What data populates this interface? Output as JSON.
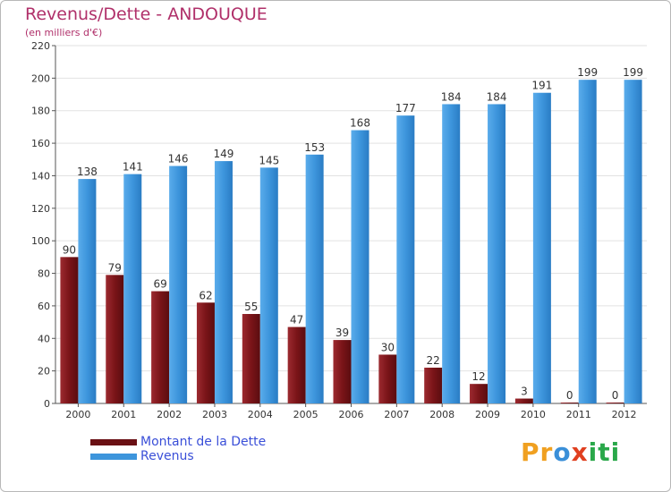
{
  "header": {
    "title": "Revenus/Dette - ANDOUQUE",
    "subtitle": "(en milliers d'€)"
  },
  "chart_data": {
    "type": "bar",
    "title": "Revenus/Dette - ANDOUQUE",
    "ylabel": "(en milliers d'€)",
    "xlabel": "",
    "categories": [
      "2000",
      "2001",
      "2002",
      "2003",
      "2004",
      "2005",
      "2006",
      "2007",
      "2008",
      "2009",
      "2010",
      "2011",
      "2012"
    ],
    "series": [
      {
        "name": "Montant de la Dette",
        "color": "#7a1418",
        "values": [
          90,
          79,
          69,
          62,
          55,
          47,
          39,
          30,
          22,
          12,
          3,
          0,
          0
        ]
      },
      {
        "name": "Revenus",
        "color": "#3d95dc",
        "values": [
          138,
          141,
          146,
          149,
          145,
          153,
          168,
          177,
          184,
          184,
          191,
          199,
          199
        ]
      }
    ],
    "ylim": [
      0,
      220
    ],
    "yticks": [
      0,
      20,
      40,
      60,
      80,
      100,
      120,
      140,
      160,
      180,
      200,
      220
    ],
    "grid": true,
    "legend": "bottom-left"
  },
  "legend": {
    "items": [
      {
        "label": "Montant de la Dette",
        "color": "#7a1418"
      },
      {
        "label": "Revenus",
        "color": "#3d95dc"
      }
    ]
  },
  "logo": {
    "text": "Proxiti",
    "letters": [
      "P",
      "r",
      "o",
      "x",
      "i",
      "t",
      "i"
    ],
    "colors": [
      "#f0a020",
      "#f0a020",
      "#3a8fd8",
      "#e04020",
      "#2aa84a",
      "#2aa84a",
      "#2aa84a"
    ]
  }
}
